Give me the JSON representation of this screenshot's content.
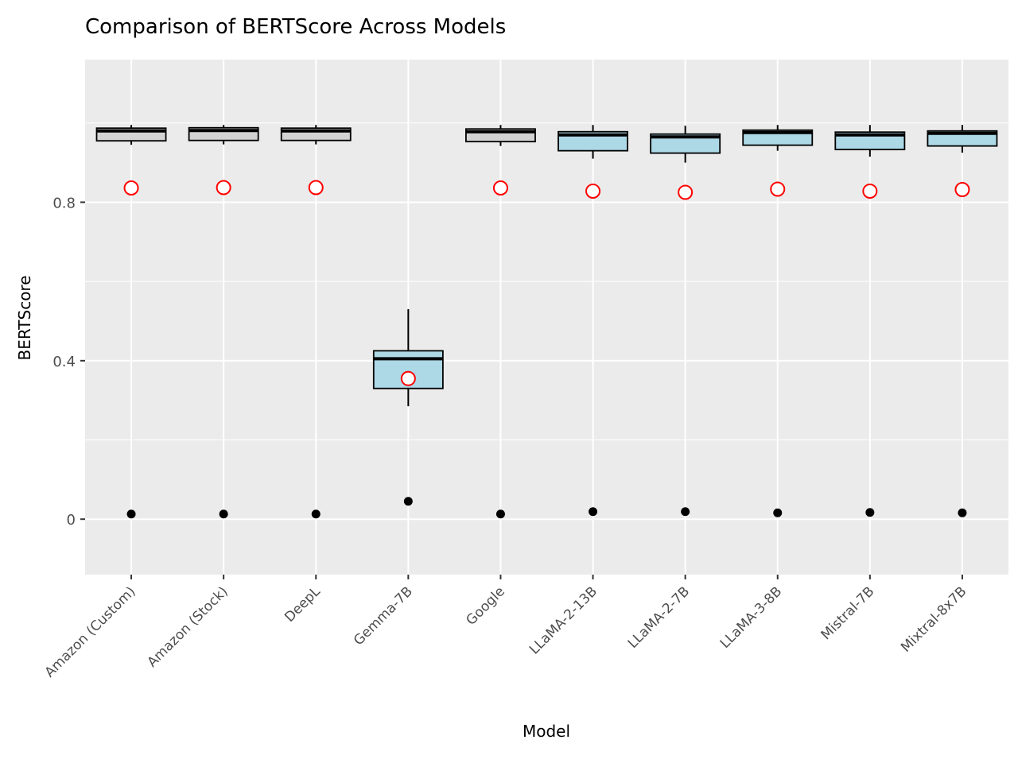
{
  "chart_data": {
    "type": "box",
    "title": "Comparison of BERTScore Across Models",
    "xlabel": "Model",
    "ylabel": "BERTScore",
    "ylim": [
      -0.14,
      1.16
    ],
    "y_ticks": [
      0,
      0.4,
      0.8
    ],
    "y_tick_labels": [
      "0",
      "0.4",
      "0.8"
    ],
    "grid": true,
    "categories": [
      "Amazon (Custom)",
      "Amazon (Stock)",
      "DeepL",
      "Gemma-7B",
      "Google",
      "LLaMA-2-13B",
      "LLaMA-2-7B",
      "LLaMA-3-8B",
      "Mistral-7B",
      "Mixtral-8x7B"
    ],
    "boxes": [
      {
        "model": "Amazon (Custom)",
        "whisker_low": 0.945,
        "q1": 0.955,
        "median": 0.98,
        "q3": 0.987,
        "whisker_high": 0.995,
        "outliers": [
          0.013
        ],
        "mean": 0.836,
        "fill": "#d3d3d3"
      },
      {
        "model": "Amazon (Stock)",
        "whisker_low": 0.946,
        "q1": 0.956,
        "median": 0.981,
        "q3": 0.988,
        "whisker_high": 0.995,
        "outliers": [
          0.013
        ],
        "mean": 0.837,
        "fill": "#d3d3d3"
      },
      {
        "model": "DeepL",
        "whisker_low": 0.946,
        "q1": 0.956,
        "median": 0.98,
        "q3": 0.987,
        "whisker_high": 0.995,
        "outliers": [
          0.013
        ],
        "mean": 0.837,
        "fill": "#d3d3d3"
      },
      {
        "model": "Gemma-7B",
        "whisker_low": 0.285,
        "q1": 0.33,
        "median": 0.405,
        "q3": 0.425,
        "whisker_high": 0.53,
        "outliers": [
          0.045
        ],
        "mean": 0.355,
        "fill": "#add8e6"
      },
      {
        "model": "Google",
        "whisker_low": 0.942,
        "q1": 0.953,
        "median": 0.978,
        "q3": 0.985,
        "whisker_high": 0.995,
        "outliers": [
          0.013
        ],
        "mean": 0.836,
        "fill": "#d3d3d3"
      },
      {
        "model": "LLaMA-2-13B",
        "whisker_low": 0.91,
        "q1": 0.93,
        "median": 0.97,
        "q3": 0.978,
        "whisker_high": 0.995,
        "outliers": [
          0.019
        ],
        "mean": 0.828,
        "fill": "#add8e6"
      },
      {
        "model": "LLaMA-2-7B",
        "whisker_low": 0.9,
        "q1": 0.924,
        "median": 0.965,
        "q3": 0.972,
        "whisker_high": 0.993,
        "outliers": [
          0.019
        ],
        "mean": 0.825,
        "fill": "#add8e6"
      },
      {
        "model": "LLaMA-3-8B",
        "whisker_low": 0.93,
        "q1": 0.944,
        "median": 0.976,
        "q3": 0.982,
        "whisker_high": 0.995,
        "outliers": [
          0.016
        ],
        "mean": 0.833,
        "fill": "#add8e6"
      },
      {
        "model": "Mistral-7B",
        "whisker_low": 0.915,
        "q1": 0.933,
        "median": 0.97,
        "q3": 0.977,
        "whisker_high": 0.995,
        "outliers": [
          0.017
        ],
        "mean": 0.828,
        "fill": "#add8e6"
      },
      {
        "model": "Mixtral-8x7B",
        "whisker_low": 0.925,
        "q1": 0.942,
        "median": 0.974,
        "q3": 0.98,
        "whisker_high": 0.995,
        "outliers": [
          0.016
        ],
        "mean": 0.832,
        "fill": "#add8e6"
      }
    ],
    "colors": {
      "panel_background": "#ebebeb",
      "grid": "#ffffff",
      "box_outline": "#000000",
      "mean_marker": "#ff0000",
      "outlier": "#000000",
      "tick_label": "#4d4d4d"
    }
  }
}
